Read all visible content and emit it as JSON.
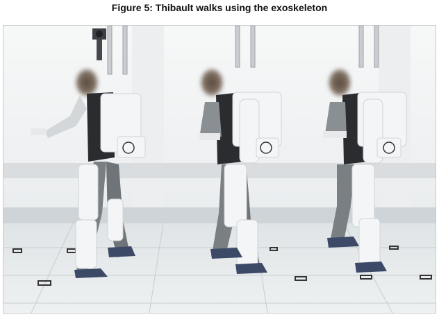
{
  "figure": {
    "caption": "Figure 5: Thibault walks using the exoskeleton"
  },
  "photo": {
    "subject": "exoskeleton-walking-sequence",
    "colors": {
      "wall": "#f3f4f5",
      "floor": "#e4e8ea",
      "exoskeleton": "#f4f5f6",
      "clothing": "#6f7478",
      "harness": "#2a2c30",
      "rail": "#c9ccd0"
    }
  }
}
